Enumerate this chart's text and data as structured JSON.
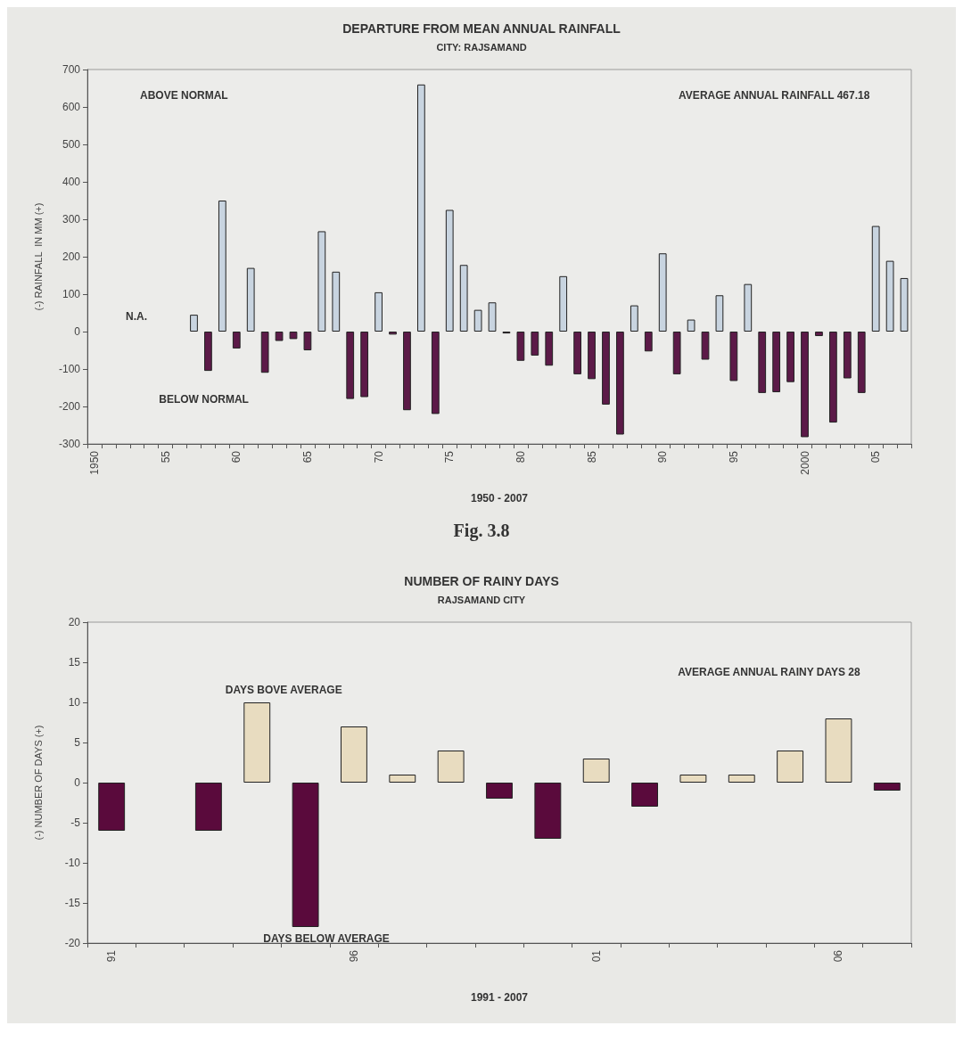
{
  "chart_data": [
    {
      "type": "bar",
      "title": "DEPARTURE FROM MEAN ANNUAL RAINFALL",
      "subtitle": "CITY: RAJSAMAND",
      "xlabel": "1950 - 2007",
      "ylabel": "(-) RAINFALL  IN MM (+)",
      "annotations": [
        "ABOVE NORMAL",
        "AVERAGE ANNUAL RAINFALL 467.18",
        "N.A.",
        "BELOW NORMAL",
        "Fig. 3.8"
      ],
      "categories": [
        "1950",
        null,
        null,
        null,
        null,
        "55",
        null,
        null,
        null,
        null,
        "60",
        null,
        null,
        null,
        null,
        "65",
        null,
        null,
        null,
        null,
        "70",
        null,
        null,
        null,
        null,
        "75",
        null,
        null,
        null,
        null,
        "80",
        null,
        null,
        null,
        null,
        "85",
        null,
        null,
        null,
        null,
        "90",
        null,
        null,
        null,
        null,
        "95",
        null,
        null,
        null,
        null,
        "2000",
        null,
        null,
        null,
        null,
        "05",
        null,
        null
      ],
      "values": [
        null,
        null,
        null,
        null,
        null,
        null,
        null,
        45,
        -105,
        350,
        -45,
        170,
        -110,
        -25,
        -20,
        -50,
        268,
        160,
        -180,
        -175,
        105,
        -8,
        -210,
        660,
        -220,
        325,
        178,
        58,
        78,
        -5,
        -78,
        -64,
        -91,
        148,
        -114,
        -127,
        -195,
        -275,
        70,
        -53,
        209,
        -114,
        32,
        -75,
        97,
        -132,
        127,
        -164,
        -162,
        -135,
        -282,
        -12,
        -243,
        -125,
        -164,
        282,
        189,
        143
      ],
      "colors": [
        null,
        null,
        null,
        null,
        null,
        null,
        null,
        "#c8d4e0",
        "#5c1a48",
        "#c8d4e0",
        "#5c1a48",
        "#c8d4e0",
        "#5c1a48",
        "#5c1a48",
        "#5c1a48",
        "#5c1a48",
        "#c8d4e0",
        "#c8d4e0",
        "#5c1a48",
        "#5c1a48",
        "#c8d4e0",
        "#5c1a48",
        "#5c1a48",
        "#c8d4e0",
        "#5c1a48",
        "#c8d4e0",
        "#c8d4e0",
        "#c8d4e0",
        "#c8d4e0",
        "#5c1a48",
        "#5c1a48",
        "#5c1a48",
        "#5c1a48",
        "#c8d4e0",
        "#5c1a48",
        "#5c1a48",
        "#5c1a48",
        "#5c1a48",
        "#c8d4e0",
        "#5c1a48",
        "#c8d4e0",
        "#5c1a48",
        "#c8d4e0",
        "#5c1a48",
        "#c8d4e0",
        "#5c1a48",
        "#c8d4e0",
        "#5c1a48",
        "#5c1a48",
        "#5c1a48",
        "#5c1a48",
        "#5c1a48",
        "#5c1a48",
        "#5c1a48",
        "#5c1a48",
        "#c8d4e0",
        "#c8d4e0",
        "#c8d4e0"
      ],
      "ylim": [
        -300,
        700
      ],
      "yticks": [
        -300,
        -200,
        -100,
        0,
        100,
        200,
        300,
        400,
        500,
        600,
        700
      ],
      "grid": false
    },
    {
      "type": "bar",
      "title": "NUMBER OF RAINY DAYS",
      "subtitle": "RAJSAMAND CITY",
      "xlabel": "1991 - 2007",
      "ylabel": "(-) NUMBER OF DAYS (+)",
      "annotations": [
        "DAYS BOVE AVERAGE",
        "AVERAGE ANNUAL RAINY DAYS 28",
        "DAYS BELOW AVERAGE"
      ],
      "categories": [
        "91",
        null,
        null,
        null,
        null,
        "96",
        null,
        null,
        null,
        null,
        "01",
        null,
        null,
        null,
        null,
        "06",
        null
      ],
      "values": [
        -6,
        null,
        -6,
        10,
        -18,
        7,
        1,
        4,
        -2,
        -7,
        3,
        -3,
        1,
        1,
        4,
        8,
        -1
      ],
      "colors": [
        "#5a0a3c",
        null,
        "#5a0a3c",
        "#e8dcc0",
        "#5a0a3c",
        "#e8dcc0",
        "#e8dcc0",
        "#e8dcc0",
        "#5a0a3c",
        "#5a0a3c",
        "#e8dcc0",
        "#5a0a3c",
        "#e8dcc0",
        "#e8dcc0",
        "#e8dcc0",
        "#e8dcc0",
        "#5a0a3c"
      ],
      "ylim": [
        -20,
        20
      ],
      "yticks": [
        -20,
        -15,
        -10,
        -5,
        0,
        5,
        10,
        15,
        20
      ],
      "grid": false
    }
  ]
}
